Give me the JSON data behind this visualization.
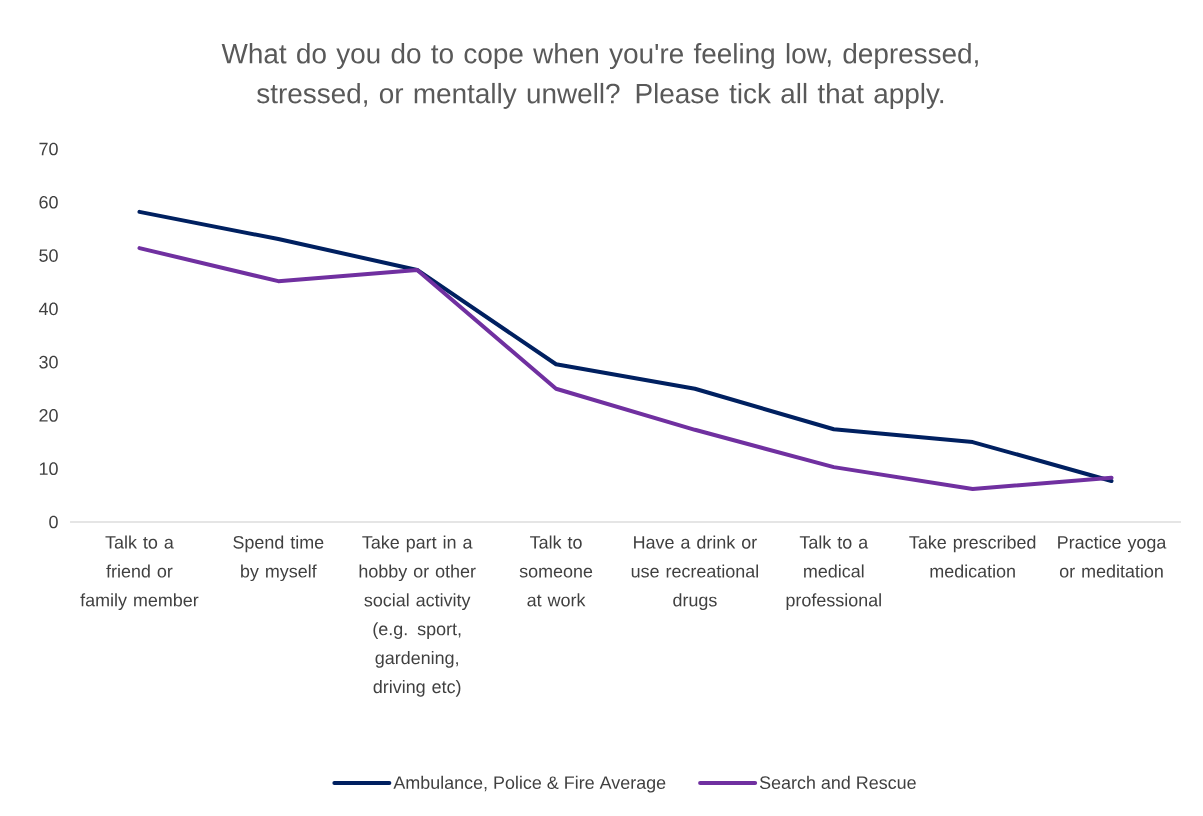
{
  "chart_data": {
    "type": "line",
    "title": "What do you do to cope when you're feeling low, depressed, stressed, or mentally unwell? Please tick all that apply.",
    "categories": [
      "Talk to a friend or family member",
      "Spend time by myself",
      "Take part in a hobby or other social activity (e.g. sport, gardening, driving etc)",
      "Talk to someone at work",
      "Have a drink or use recreational drugs",
      "Talk to a medical professional",
      "Take prescribed medication",
      "Practice yoga or meditation"
    ],
    "series": [
      {
        "name": "Ambulance, Police & Fire Average",
        "color": "#002060",
        "values": [
          58.2,
          53.1,
          47.3,
          29.6,
          25.0,
          17.4,
          15.0,
          7.7
        ]
      },
      {
        "name": "Search and Rescue",
        "color": "#7030a0",
        "values": [
          51.4,
          45.2,
          47.3,
          25.0,
          17.3,
          10.3,
          6.2,
          8.3
        ]
      }
    ],
    "ylim": [
      0,
      70
    ],
    "yticks": [
      0,
      10,
      20,
      30,
      40,
      50,
      60,
      70
    ],
    "legend": "bottom"
  }
}
